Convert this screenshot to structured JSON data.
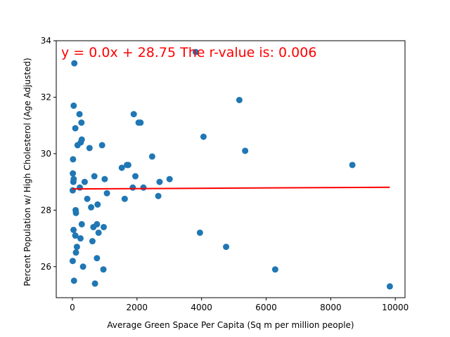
{
  "chart_data": {
    "type": "scatter",
    "xlabel": "Average Green Space Per Capita (Sq m per million people)",
    "ylabel": "Percent Population w/ High Cholesterol (Age Adjusted)",
    "xlim": [
      -500,
      10300
    ],
    "ylim": [
      24.9,
      34
    ],
    "x_ticks": [
      0,
      2000,
      4000,
      6000,
      8000,
      10000
    ],
    "y_ticks": [
      26,
      28,
      30,
      32,
      34
    ],
    "grid": false,
    "annotation": "y = 0.0x + 28.75 The r-value is: 0.006",
    "colors": {
      "points": "#1f77b4",
      "regression": "#ff0000"
    },
    "regression": {
      "slope": 6.2e-06,
      "intercept": 28.75,
      "x_range": [
        0,
        9830
      ]
    },
    "points": [
      [
        30,
        29.0
      ],
      [
        60,
        33.2
      ],
      [
        40,
        31.7
      ],
      [
        20,
        29.8
      ],
      [
        15,
        29.3
      ],
      [
        40,
        29.1
      ],
      [
        10,
        28.7
      ],
      [
        35,
        27.3
      ],
      [
        10,
        26.2
      ],
      [
        50,
        25.5
      ],
      [
        90,
        30.9
      ],
      [
        100,
        28.0
      ],
      [
        110,
        27.9
      ],
      [
        90,
        27.1
      ],
      [
        110,
        26.5
      ],
      [
        140,
        26.7
      ],
      [
        160,
        30.3
      ],
      [
        220,
        31.4
      ],
      [
        260,
        30.4
      ],
      [
        290,
        30.5
      ],
      [
        280,
        31.1
      ],
      [
        230,
        28.8
      ],
      [
        290,
        27.5
      ],
      [
        250,
        27.0
      ],
      [
        330,
        26.0
      ],
      [
        380,
        29.0
      ],
      [
        460,
        28.4
      ],
      [
        530,
        30.2
      ],
      [
        580,
        28.1
      ],
      [
        620,
        26.9
      ],
      [
        680,
        29.2
      ],
      [
        650,
        27.4
      ],
      [
        760,
        27.5
      ],
      [
        780,
        28.2
      ],
      [
        810,
        27.2
      ],
      [
        760,
        26.3
      ],
      [
        700,
        25.4
      ],
      [
        920,
        30.3
      ],
      [
        970,
        27.4
      ],
      [
        1000,
        29.1
      ],
      [
        1070,
        28.6
      ],
      [
        960,
        25.9
      ],
      [
        1530,
        29.5
      ],
      [
        1690,
        29.6
      ],
      [
        1730,
        29.6
      ],
      [
        1620,
        28.4
      ],
      [
        1870,
        28.8
      ],
      [
        1900,
        31.4
      ],
      [
        1950,
        29.2
      ],
      [
        2050,
        31.1
      ],
      [
        2110,
        31.1
      ],
      [
        2200,
        28.8
      ],
      [
        2470,
        29.9
      ],
      [
        2660,
        28.5
      ],
      [
        2700,
        29.0
      ],
      [
        3010,
        29.1
      ],
      [
        3820,
        33.6
      ],
      [
        3950,
        27.2
      ],
      [
        4060,
        30.6
      ],
      [
        4760,
        26.7
      ],
      [
        5170,
        31.9
      ],
      [
        5350,
        30.1
      ],
      [
        6280,
        25.9
      ],
      [
        8670,
        29.6
      ],
      [
        9830,
        25.3
      ]
    ]
  }
}
